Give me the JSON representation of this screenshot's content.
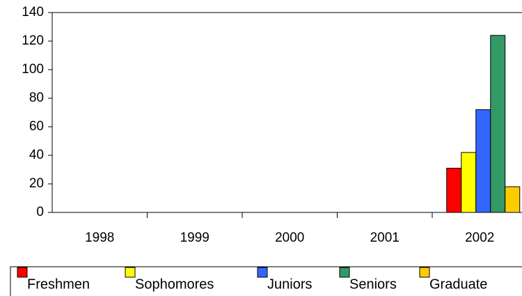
{
  "chart_data": {
    "type": "bar",
    "categories": [
      "1998",
      "1999",
      "2000",
      "2001",
      "2002"
    ],
    "series": [
      {
        "name": "Freshmen",
        "color": "#ff0000",
        "values": [
          null,
          null,
          null,
          null,
          31
        ]
      },
      {
        "name": "Sophomores",
        "color": "#ffff00",
        "values": [
          null,
          null,
          null,
          null,
          42
        ]
      },
      {
        "name": "Juniors",
        "color": "#3366ff",
        "values": [
          null,
          null,
          null,
          null,
          72
        ]
      },
      {
        "name": "Seniors",
        "color": "#339966",
        "values": [
          null,
          null,
          null,
          null,
          124
        ]
      },
      {
        "name": "Graduate",
        "color": "#ffcc00",
        "values": [
          null,
          null,
          null,
          null,
          18
        ]
      }
    ],
    "ylim": [
      0,
      140
    ],
    "yticks": [
      0,
      20,
      40,
      60,
      80,
      100,
      120,
      140
    ],
    "grid": false,
    "legend": "bottom"
  }
}
